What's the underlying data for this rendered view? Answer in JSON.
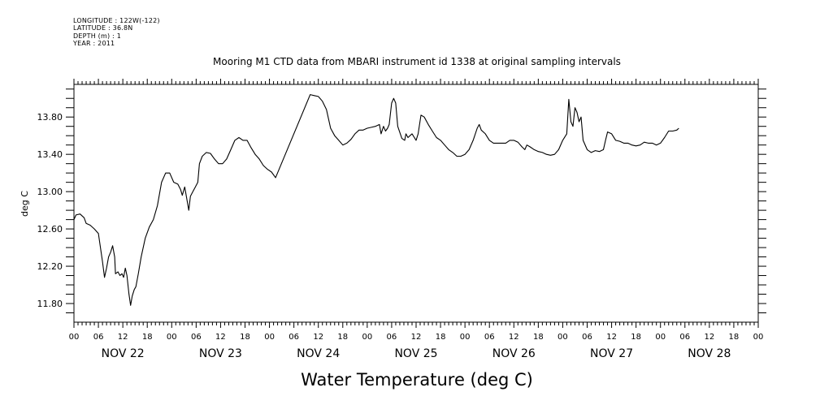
{
  "meta_lines": [
    "LONGITUDE : 122W(-122)",
    "LATITUDE : 36.8N",
    "DEPTH (m) : 1",
    "YEAR : 2011"
  ],
  "chart_data": {
    "type": "line",
    "title": "Mooring M1 CTD data from MBARI instrument id 1338 at original sampling intervals",
    "bottom_title": "Water Temperature (deg C)",
    "ylabel": "deg C",
    "xlabel": "",
    "x_unit": "hours from 2011-11-22 00:00",
    "xlim": [
      0,
      168
    ],
    "ylim": [
      11.6,
      14.15
    ],
    "yticks": [
      11.8,
      12.2,
      12.6,
      13.0,
      13.4,
      13.8
    ],
    "ytick_labels": [
      "11.80",
      "12.20",
      "12.60",
      "13.00",
      "13.40",
      "13.80"
    ],
    "xtick_hours": [
      0,
      6,
      12,
      18,
      24,
      30,
      36,
      42,
      48,
      54,
      60,
      66,
      72,
      78,
      84,
      90,
      96,
      102,
      108,
      114,
      120,
      126,
      132,
      138,
      144,
      150,
      156,
      162,
      168
    ],
    "xtick_labels": [
      "00",
      "06",
      "12",
      "18",
      "00",
      "06",
      "12",
      "18",
      "00",
      "06",
      "12",
      "18",
      "00",
      "06",
      "12",
      "18",
      "00",
      "06",
      "12",
      "18",
      "00",
      "06",
      "12",
      "18",
      "00",
      "06",
      "12",
      "18",
      "00"
    ],
    "day_labels": [
      {
        "hour": 12,
        "label": "NOV 22"
      },
      {
        "hour": 36,
        "label": "NOV 23"
      },
      {
        "hour": 60,
        "label": "NOV 24"
      },
      {
        "hour": 84,
        "label": "NOV 25"
      },
      {
        "hour": 108,
        "label": "NOV 26"
      },
      {
        "hour": 132,
        "label": "NOV 27"
      },
      {
        "hour": 156,
        "label": "NOV 28"
      }
    ],
    "grid": false,
    "series": [
      {
        "color": "#000000",
        "points": [
          [
            0,
            12.7
          ],
          [
            0.5,
            12.75
          ],
          [
            1.5,
            12.76
          ],
          [
            2.5,
            12.72
          ],
          [
            3,
            12.66
          ],
          [
            4,
            12.64
          ],
          [
            5,
            12.6
          ],
          [
            6,
            12.55
          ],
          [
            6.5,
            12.4
          ],
          [
            7,
            12.25
          ],
          [
            7.5,
            12.08
          ],
          [
            8,
            12.18
          ],
          [
            8.5,
            12.3
          ],
          [
            9,
            12.35
          ],
          [
            9.5,
            12.42
          ],
          [
            10,
            12.3
          ],
          [
            10.2,
            12.12
          ],
          [
            10.8,
            12.14
          ],
          [
            11.3,
            12.1
          ],
          [
            11.8,
            12.12
          ],
          [
            12.2,
            12.08
          ],
          [
            12.6,
            12.18
          ],
          [
            13,
            12.1
          ],
          [
            13.5,
            11.9
          ],
          [
            13.9,
            11.78
          ],
          [
            14.3,
            11.88
          ],
          [
            14.8,
            11.95
          ],
          [
            15.2,
            11.98
          ],
          [
            15.8,
            12.12
          ],
          [
            16.5,
            12.3
          ],
          [
            17.5,
            12.5
          ],
          [
            18.5,
            12.62
          ],
          [
            19.5,
            12.7
          ],
          [
            20.5,
            12.85
          ],
          [
            21.5,
            13.1
          ],
          [
            22.5,
            13.2
          ],
          [
            23.5,
            13.2
          ],
          [
            24.5,
            13.1
          ],
          [
            25.5,
            13.08
          ],
          [
            26.2,
            13.02
          ],
          [
            26.6,
            12.96
          ],
          [
            27.2,
            13.05
          ],
          [
            28.2,
            12.8
          ],
          [
            28.6,
            12.95
          ],
          [
            29.2,
            13.0
          ],
          [
            29.8,
            13.05
          ],
          [
            30.4,
            13.1
          ],
          [
            30.8,
            13.3
          ],
          [
            31.5,
            13.38
          ],
          [
            32.5,
            13.42
          ],
          [
            33.5,
            13.41
          ],
          [
            34.5,
            13.35
          ],
          [
            35.5,
            13.3
          ],
          [
            36.5,
            13.3
          ],
          [
            37.5,
            13.35
          ],
          [
            38.5,
            13.45
          ],
          [
            39.5,
            13.55
          ],
          [
            40.5,
            13.58
          ],
          [
            41.5,
            13.55
          ],
          [
            42.5,
            13.55
          ],
          [
            43.5,
            13.47
          ],
          [
            44.5,
            13.4
          ],
          [
            45.5,
            13.35
          ],
          [
            46.5,
            13.28
          ],
          [
            47.5,
            13.24
          ],
          [
            48.5,
            13.21
          ],
          [
            49.5,
            13.15
          ],
          [
            58,
            14.04
          ],
          [
            59,
            14.03
          ],
          [
            60,
            14.02
          ],
          [
            61,
            13.97
          ],
          [
            62,
            13.88
          ],
          [
            63,
            13.68
          ],
          [
            64,
            13.6
          ],
          [
            65,
            13.55
          ],
          [
            66,
            13.5
          ],
          [
            67,
            13.52
          ],
          [
            68,
            13.56
          ],
          [
            69,
            13.62
          ],
          [
            70,
            13.66
          ],
          [
            71,
            13.66
          ],
          [
            72,
            13.68
          ],
          [
            73,
            13.69
          ],
          [
            74,
            13.7
          ],
          [
            75,
            13.72
          ],
          [
            75.4,
            13.62
          ],
          [
            76,
            13.7
          ],
          [
            76.5,
            13.65
          ],
          [
            77,
            13.68
          ],
          [
            77.4,
            13.72
          ],
          [
            78,
            13.95
          ],
          [
            78.5,
            14.0
          ],
          [
            79,
            13.95
          ],
          [
            79.5,
            13.7
          ],
          [
            80.5,
            13.57
          ],
          [
            81.2,
            13.55
          ],
          [
            81.5,
            13.62
          ],
          [
            82,
            13.58
          ],
          [
            82.5,
            13.6
          ],
          [
            83,
            13.62
          ],
          [
            84,
            13.55
          ],
          [
            84.5,
            13.62
          ],
          [
            85.2,
            13.82
          ],
          [
            86,
            13.8
          ],
          [
            87,
            13.72
          ],
          [
            88,
            13.65
          ],
          [
            89,
            13.58
          ],
          [
            90,
            13.55
          ],
          [
            91,
            13.5
          ],
          [
            92,
            13.45
          ],
          [
            93,
            13.42
          ],
          [
            94,
            13.38
          ],
          [
            95,
            13.38
          ],
          [
            96,
            13.4
          ],
          [
            97,
            13.45
          ],
          [
            98,
            13.55
          ],
          [
            99,
            13.68
          ],
          [
            99.5,
            13.72
          ],
          [
            100,
            13.66
          ],
          [
            101,
            13.62
          ],
          [
            102,
            13.55
          ],
          [
            103,
            13.52
          ],
          [
            104,
            13.52
          ],
          [
            105,
            13.52
          ],
          [
            106,
            13.52
          ],
          [
            107,
            13.55
          ],
          [
            108,
            13.55
          ],
          [
            109,
            13.53
          ],
          [
            110,
            13.48
          ],
          [
            110.7,
            13.45
          ],
          [
            111.2,
            13.5
          ],
          [
            112,
            13.48
          ],
          [
            113,
            13.45
          ],
          [
            114,
            13.43
          ],
          [
            115,
            13.42
          ],
          [
            116,
            13.4
          ],
          [
            117,
            13.39
          ],
          [
            118,
            13.4
          ],
          [
            119,
            13.45
          ],
          [
            120,
            13.55
          ],
          [
            121,
            13.62
          ],
          [
            121.5,
            13.99
          ],
          [
            122,
            13.75
          ],
          [
            122.5,
            13.7
          ],
          [
            123,
            13.9
          ],
          [
            123.5,
            13.85
          ],
          [
            124,
            13.75
          ],
          [
            124.5,
            13.8
          ],
          [
            125,
            13.55
          ],
          [
            126,
            13.45
          ],
          [
            127,
            13.42
          ],
          [
            128,
            13.44
          ],
          [
            129,
            13.43
          ],
          [
            130,
            13.45
          ],
          [
            130.5,
            13.55
          ],
          [
            131,
            13.64
          ],
          [
            132,
            13.62
          ],
          [
            133,
            13.55
          ],
          [
            134,
            13.54
          ],
          [
            135,
            13.52
          ],
          [
            136,
            13.52
          ],
          [
            137,
            13.5
          ],
          [
            138,
            13.49
          ],
          [
            139,
            13.5
          ],
          [
            140,
            13.53
          ],
          [
            141,
            13.52
          ],
          [
            142,
            13.52
          ],
          [
            143,
            13.5
          ],
          [
            144,
            13.52
          ],
          [
            145,
            13.58
          ],
          [
            146,
            13.65
          ],
          [
            147,
            13.65
          ],
          [
            148,
            13.66
          ],
          [
            148.5,
            13.68
          ]
        ]
      }
    ]
  }
}
